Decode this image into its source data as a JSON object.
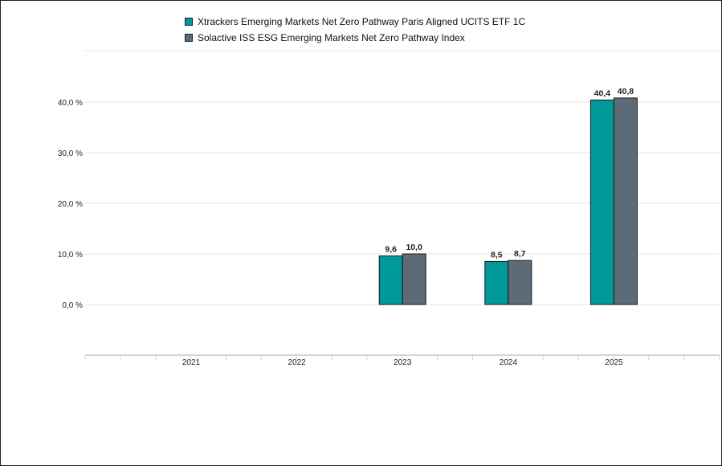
{
  "chart_data": {
    "type": "bar",
    "categories": [
      "2021",
      "2022",
      "2023",
      "2024",
      "2025"
    ],
    "series": [
      {
        "name": "Xtrackers Emerging Markets Net Zero Pathway Paris Aligned UCITS ETF 1C",
        "color": "#009999",
        "values": [
          null,
          null,
          9.6,
          8.5,
          40.4
        ],
        "labels": [
          "",
          "",
          "9,6",
          "8,5",
          "40,4"
        ]
      },
      {
        "name": "Solactive ISS ESG Emerging Markets Net Zero Pathway Index",
        "color": "#5b6b77",
        "values": [
          null,
          null,
          10.0,
          8.7,
          40.8
        ],
        "labels": [
          "",
          "",
          "10,0",
          "8,7",
          "40,8"
        ]
      }
    ],
    "y_ticks": [
      0,
      10,
      20,
      30,
      40
    ],
    "y_tick_labels": [
      "0,0 %",
      "10,0 %",
      "20,0 %",
      "30,0 %",
      "40,0 %"
    ],
    "ylim": [
      -10,
      50
    ],
    "title": "",
    "xlabel": "",
    "ylabel": "",
    "grid": true,
    "legend_position": "top"
  }
}
